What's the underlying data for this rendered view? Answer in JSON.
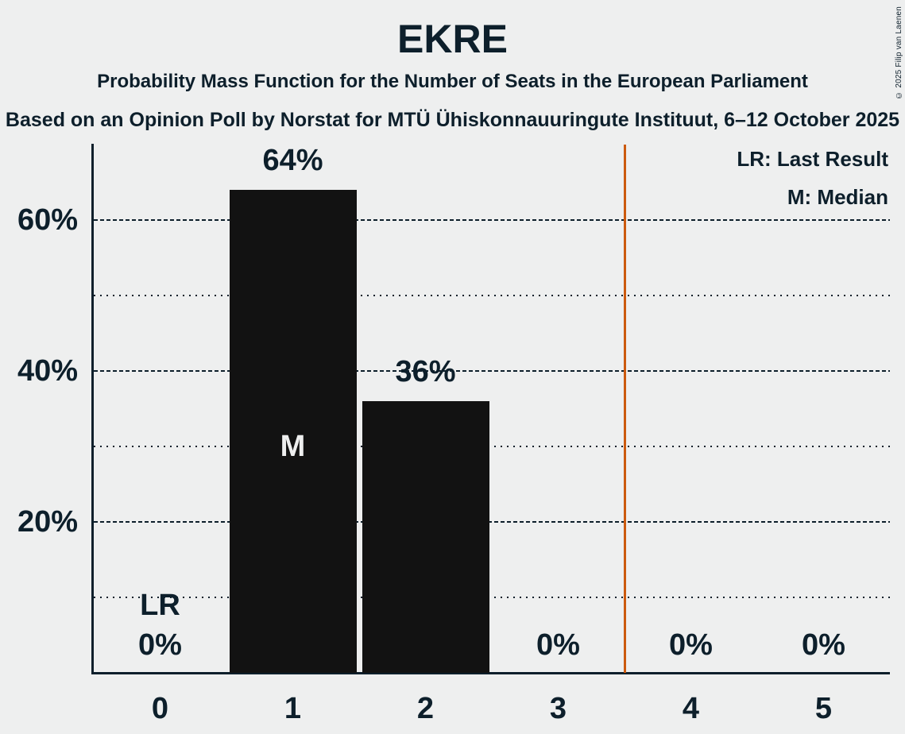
{
  "header": {
    "title": "EKRE",
    "subtitle1": "Probability Mass Function for the Number of Seats in the European Parliament",
    "subtitle2": "Based on an Opinion Poll by Norstat for MTÜ Ühiskonnauuringute Instituut, 6–12 October 2025",
    "copyright": "© 2025 Filip van Laenen"
  },
  "legend": {
    "last_result": "LR: Last Result",
    "median": "M: Median"
  },
  "chart_data": {
    "type": "bar",
    "title": "EKRE",
    "xlabel": "",
    "ylabel": "",
    "categories": [
      "0",
      "1",
      "2",
      "3",
      "4",
      "5"
    ],
    "values": [
      0,
      64,
      36,
      0,
      0,
      0
    ],
    "bar_labels": [
      "0%",
      "64%",
      "36%",
      "0%",
      "0%",
      "0%"
    ],
    "ylim": [
      0,
      70
    ],
    "yticks": [
      {
        "pct": 20,
        "label": "20%"
      },
      {
        "pct": 40,
        "label": "40%"
      },
      {
        "pct": 60,
        "label": "60%"
      }
    ],
    "gridlines": [
      {
        "pct": 10,
        "style": "dotted"
      },
      {
        "pct": 20,
        "style": "dashed"
      },
      {
        "pct": 30,
        "style": "dotted"
      },
      {
        "pct": 40,
        "style": "dashed"
      },
      {
        "pct": 50,
        "style": "dotted"
      },
      {
        "pct": 60,
        "style": "dashed"
      }
    ],
    "median_marker": {
      "label": "M",
      "category": "1",
      "pct_center": 30
    },
    "last_result_marker": {
      "label": "LR",
      "category": "0",
      "pct_center": 9
    },
    "last_result_line_x": 3.5,
    "legend_position": "top-right",
    "grid": true,
    "colors": {
      "background": "#eeefef",
      "bar": "#121212",
      "text": "#0d1f2b",
      "last_result_line": "#cc5a0e",
      "median_label": "#eeefef"
    }
  }
}
